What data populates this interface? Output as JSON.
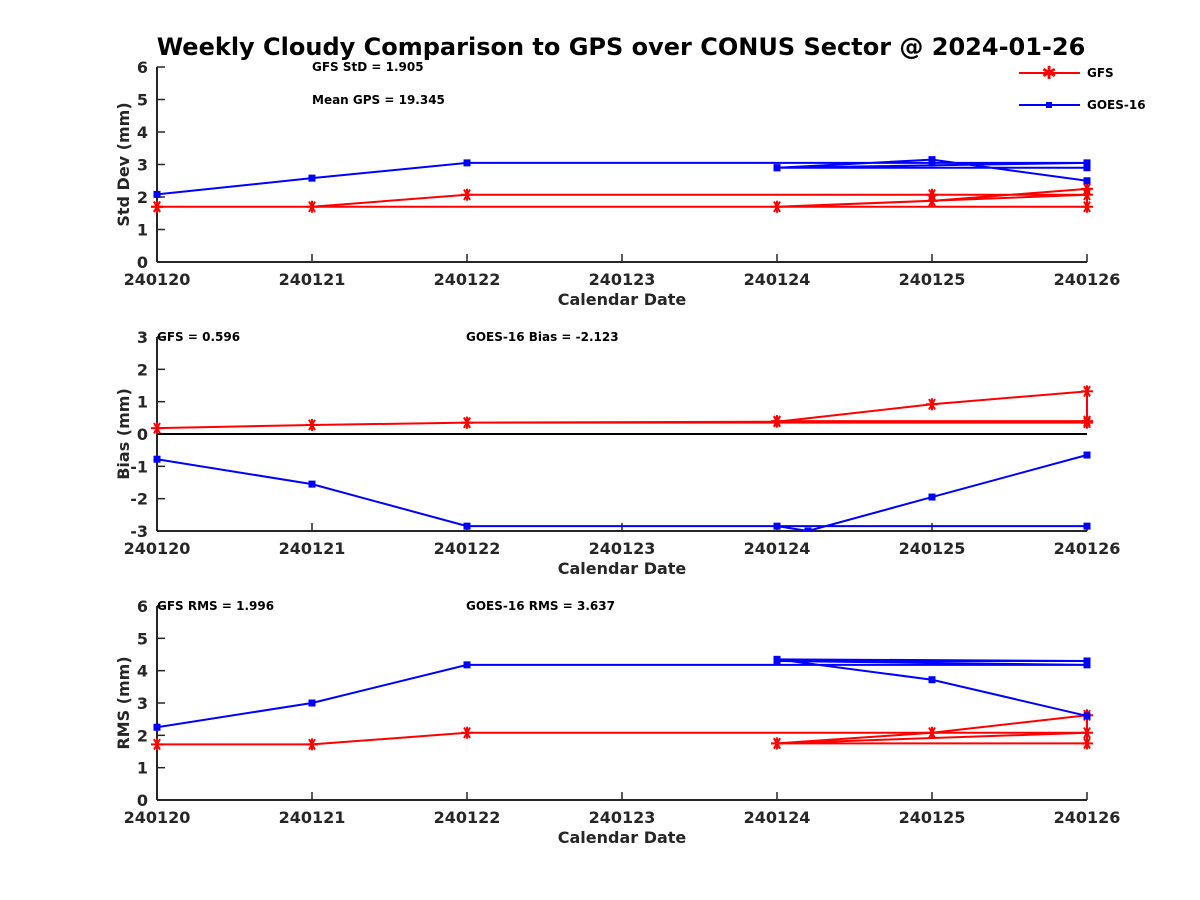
{
  "title": "Weekly Cloudy Comparison to GPS over CONUS Sector @ 2024-01-26",
  "colors": {
    "gfs": "#ff0000",
    "goes": "#0000ff",
    "axis": "#262626",
    "zero": "#000000"
  },
  "legend": {
    "placement": "top-right",
    "items": [
      {
        "name": "GFS",
        "color": "#ff0000",
        "marker": "asterisk"
      },
      {
        "name": "GOES-16",
        "color": "#0000ff",
        "marker": "square"
      }
    ]
  },
  "chart_data": [
    {
      "type": "line",
      "ylabel": "Std Dev (mm)",
      "xlabel": "Calendar Date",
      "x_ticks": [
        "240120",
        "240121",
        "240122",
        "240123",
        "240124",
        "240125",
        "240126"
      ],
      "ylim": [
        0,
        6
      ],
      "y_ticks": [
        0,
        1,
        2,
        3,
        4,
        5,
        6
      ],
      "annotations": [
        "GFS StD = 1.905",
        "Mean GPS = 19.345"
      ],
      "zero_line": false,
      "series": [
        {
          "name": "GFS",
          "color": "#ff0000",
          "marker": "asterisk",
          "points": [
            [
              0,
              1.7
            ],
            [
              1,
              1.7
            ],
            [
              2,
              2.07
            ],
            [
              5,
              2.07
            ],
            [
              6,
              2.07
            ],
            [
              4,
              1.7
            ],
            [
              5,
              1.88
            ],
            [
              6,
              2.25
            ],
            [
              6,
              1.7
            ],
            [
              0,
              1.7
            ]
          ]
        },
        {
          "name": "GOES-16",
          "color": "#0000ff",
          "marker": "square",
          "points": [
            [
              0,
              2.08
            ],
            [
              1,
              2.58
            ],
            [
              2,
              3.05
            ],
            [
              5,
              3.05
            ],
            [
              6,
              3.05
            ],
            [
              4,
              2.9
            ],
            [
              6,
              2.9
            ],
            [
              4,
              2.9
            ],
            [
              5,
              3.15
            ],
            [
              6,
              2.5
            ]
          ]
        }
      ]
    },
    {
      "type": "line",
      "ylabel": "Bias (mm)",
      "xlabel": "Calendar Date",
      "x_ticks": [
        "240120",
        "240121",
        "240122",
        "240123",
        "240124",
        "240125",
        "240126"
      ],
      "ylim": [
        -3,
        3
      ],
      "y_ticks": [
        -3,
        -2,
        -1,
        0,
        1,
        2,
        3
      ],
      "annotations": [
        "GFS = 0.596",
        "GOES-16 Bias  = -2.123"
      ],
      "zero_line": true,
      "series": [
        {
          "name": "GFS",
          "color": "#ff0000",
          "marker": "asterisk",
          "points": [
            [
              0,
              0.18
            ],
            [
              1,
              0.28
            ],
            [
              2,
              0.35
            ],
            [
              4,
              0.38
            ],
            [
              5,
              0.92
            ],
            [
              6,
              1.32
            ],
            [
              6,
              0.4
            ],
            [
              4,
              0.4
            ],
            [
              6,
              0.35
            ],
            [
              2,
              0.35
            ]
          ]
        },
        {
          "name": "GOES-16",
          "color": "#0000ff",
          "marker": "square",
          "points": [
            [
              0,
              -0.78
            ],
            [
              1,
              -1.55
            ],
            [
              2,
              -2.85
            ],
            [
              6,
              -2.85
            ],
            [
              4,
              -2.85
            ],
            [
              4.2,
              -3.0
            ],
            [
              5,
              -1.95
            ],
            [
              6,
              -0.65
            ]
          ]
        }
      ]
    },
    {
      "type": "line",
      "ylabel": "RMS (mm)",
      "xlabel": "Calendar Date",
      "x_ticks": [
        "240120",
        "240121",
        "240122",
        "240123",
        "240124",
        "240125",
        "240126"
      ],
      "ylim": [
        0,
        6
      ],
      "y_ticks": [
        0,
        1,
        2,
        3,
        4,
        5,
        6
      ],
      "annotations": [
        "GFS RMS = 1.996",
        "GOES-16 RMS = 3.637"
      ],
      "zero_line": false,
      "series": [
        {
          "name": "GFS",
          "color": "#ff0000",
          "marker": "asterisk",
          "points": [
            [
              0,
              1.72
            ],
            [
              1,
              1.72
            ],
            [
              2,
              2.08
            ],
            [
              6,
              2.08
            ],
            [
              4,
              1.75
            ],
            [
              5,
              2.08
            ],
            [
              6,
              2.62
            ],
            [
              6,
              1.75
            ],
            [
              4,
              1.75
            ]
          ]
        },
        {
          "name": "GOES-16",
          "color": "#0000ff",
          "marker": "square",
          "points": [
            [
              0,
              2.25
            ],
            [
              1,
              3.0
            ],
            [
              2,
              4.18
            ],
            [
              6,
              4.18
            ],
            [
              4,
              4.3
            ],
            [
              6,
              4.3
            ],
            [
              4,
              4.35
            ],
            [
              5,
              3.72
            ],
            [
              6,
              2.6
            ]
          ]
        }
      ]
    }
  ]
}
